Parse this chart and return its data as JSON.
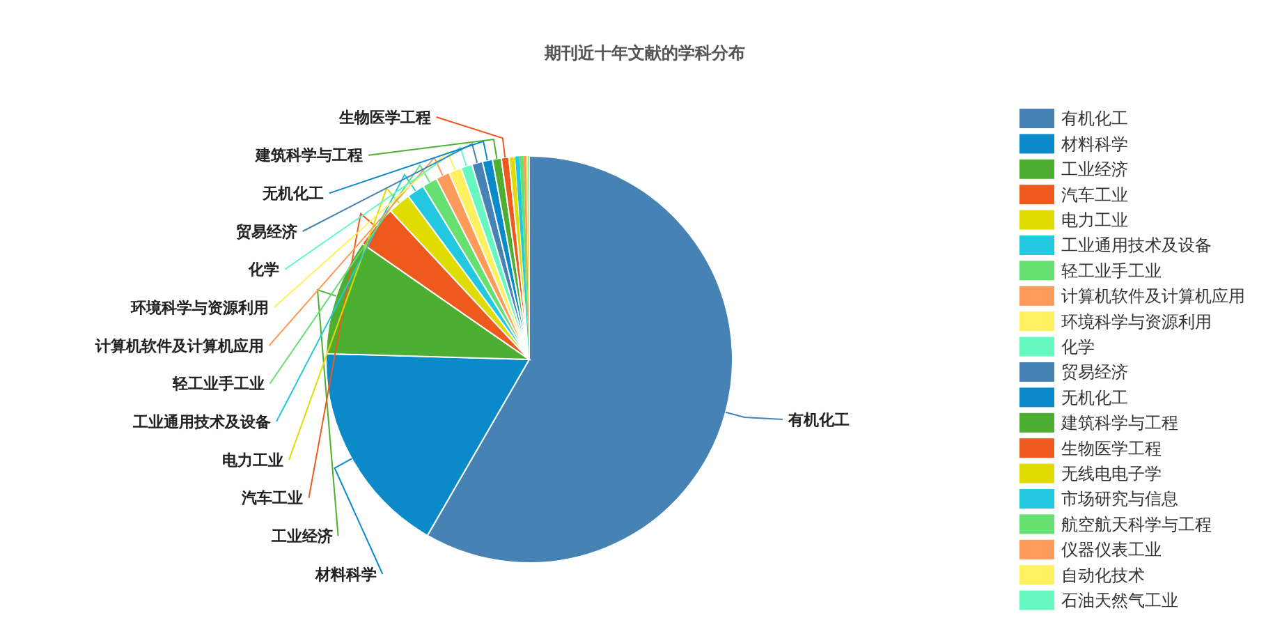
{
  "chart_data": {
    "type": "pie",
    "title": "期刊近十年文献的学科分布",
    "categories": [
      "有机化工",
      "材料科学",
      "工业经济",
      "汽车工业",
      "电力工业",
      "工业通用技术及设备",
      "轻工业手工业",
      "计算机软件及计算机应用",
      "环境科学与资源利用",
      "化学",
      "贸易经济",
      "无机化工",
      "建筑科学与工程",
      "生物医学工程",
      "无线电电子学",
      "市场研究与信息",
      "航空航天科学与工程",
      "仪器仪表工业",
      "自动化技术",
      "石油天然气工业"
    ],
    "values": [
      58.35,
      17.1,
      9.2,
      3.4,
      1.8,
      1.4,
      1.2,
      1.1,
      1.0,
      0.9,
      0.85,
      0.8,
      0.7,
      0.6,
      0.5,
      0.35,
      0.3,
      0.2,
      0.15,
      0.1
    ],
    "colors": [
      "#4682b4",
      "#0a8ac8",
      "#4caf32",
      "#ee5a1e",
      "#e0dc00",
      "#22c8e0",
      "#66e070",
      "#ff9a5a",
      "#fff060",
      "#66f8c0",
      "#4682b4",
      "#0a8ac8",
      "#4caf32",
      "#ee5a1e",
      "#e0dc00",
      "#22c8e0",
      "#66e070",
      "#ff9a5a",
      "#fff060",
      "#66f8c0"
    ],
    "legend": "right"
  }
}
